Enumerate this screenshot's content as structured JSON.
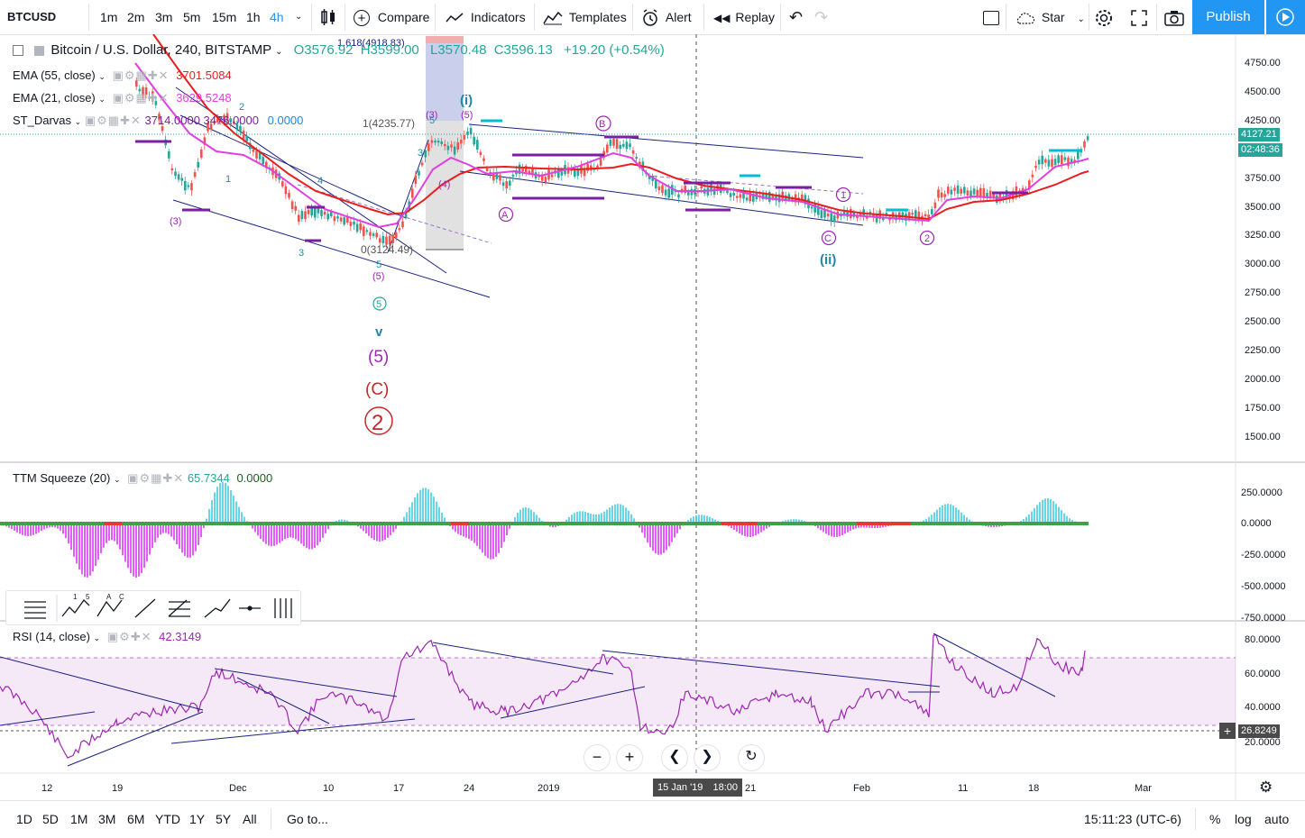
{
  "toolbar": {
    "symbol": "BTCUSD",
    "intervals": [
      "1m",
      "2m",
      "3m",
      "5m",
      "15m",
      "1h",
      "4h"
    ],
    "active_interval": "4h",
    "compare": "Compare",
    "indicators": "Indicators",
    "templates": "Templates",
    "alert": "Alert",
    "replay": "Replay",
    "star": "Star",
    "publish": "Publish"
  },
  "main": {
    "title": "Bitcoin / U.S. Dollar, 240, BITSTAMP",
    "o_label": "O",
    "o": "3576.92",
    "h_label": "H",
    "h": "3599.00",
    "l_label": "L",
    "l": "3570.48",
    "c_label": "C",
    "c": "3596.13",
    "change": "+19.20 (+0.54%)",
    "ema55_label": "EMA (55, close)",
    "ema55_value": "3701.5084",
    "ema21_label": "EMA (21, close)",
    "ema21_value": "3629.5248",
    "darvas_label": "ST_Darvas",
    "darvas_v1": "3714.0000",
    "darvas_v2": "3476.0000",
    "darvas_v3": "0.0000",
    "price_ticks": [
      "4750.00",
      "4500.00",
      "4250.00",
      "4000.00",
      "3750.00",
      "3500.00",
      "3250.00",
      "3000.00",
      "2750.00",
      "2500.00",
      "2250.00",
      "2000.00",
      "1750.00",
      "1500.00"
    ],
    "last_price": "4127.21",
    "countdown": "02:48:36",
    "fib_top": "1.618(4918.83)",
    "fib_mid": "1(4235.77)",
    "fib_zero": "0(3124.49)",
    "wave_labels": {
      "i": "(i)",
      "ii": "(ii)",
      "v": "v",
      "five": "(5)",
      "c": "(C)",
      "two": "2",
      "circ_five": "5",
      "A": "A",
      "B": "B",
      "C": "C",
      "one": "1",
      "circ_two": "2",
      "three_p": "(3)",
      "five_p": "(5)",
      "four_p": "(4)",
      "n1": "1",
      "n2": "2",
      "n3": "3",
      "n4": "4",
      "n5": "5"
    }
  },
  "ttm": {
    "label": "TTM Squeeze (20)",
    "v1": "65.7344",
    "v2": "0.0000",
    "ticks": [
      "250.0000",
      "0.0000",
      "-250.0000",
      "-500.0000",
      "-750.0000"
    ]
  },
  "rsi": {
    "label": "RSI (14, close)",
    "value": "42.3149",
    "ticks": [
      "80.0000",
      "60.0000",
      "40.0000",
      "20.0000"
    ],
    "current": "26.8249"
  },
  "time_axis": {
    "labels": [
      "12",
      "19",
      "Dec",
      "10",
      "17",
      "24",
      "2019",
      "21",
      "Feb",
      "11",
      "18",
      "Mar"
    ],
    "cursor_date": "15 Jan '19",
    "cursor_time": "18:00"
  },
  "bottom": {
    "ranges": [
      "1D",
      "5D",
      "1M",
      "3M",
      "6M",
      "YTD",
      "1Y",
      "5Y",
      "All"
    ],
    "goto": "Go to...",
    "clock": "15:11:23 (UTC-6)",
    "percent": "%",
    "log": "log",
    "auto": "auto"
  },
  "colors": {
    "accent": "#2196f3",
    "ema55": "#e91e1e",
    "ema21": "#e040e0",
    "up": "#26a69a",
    "down": "#ef5350",
    "darvas": "#7b1fa2",
    "rsi": "#9c27b0",
    "ttm_pos": "#4dd0e1",
    "ttm_neg": "#e040fb"
  }
}
